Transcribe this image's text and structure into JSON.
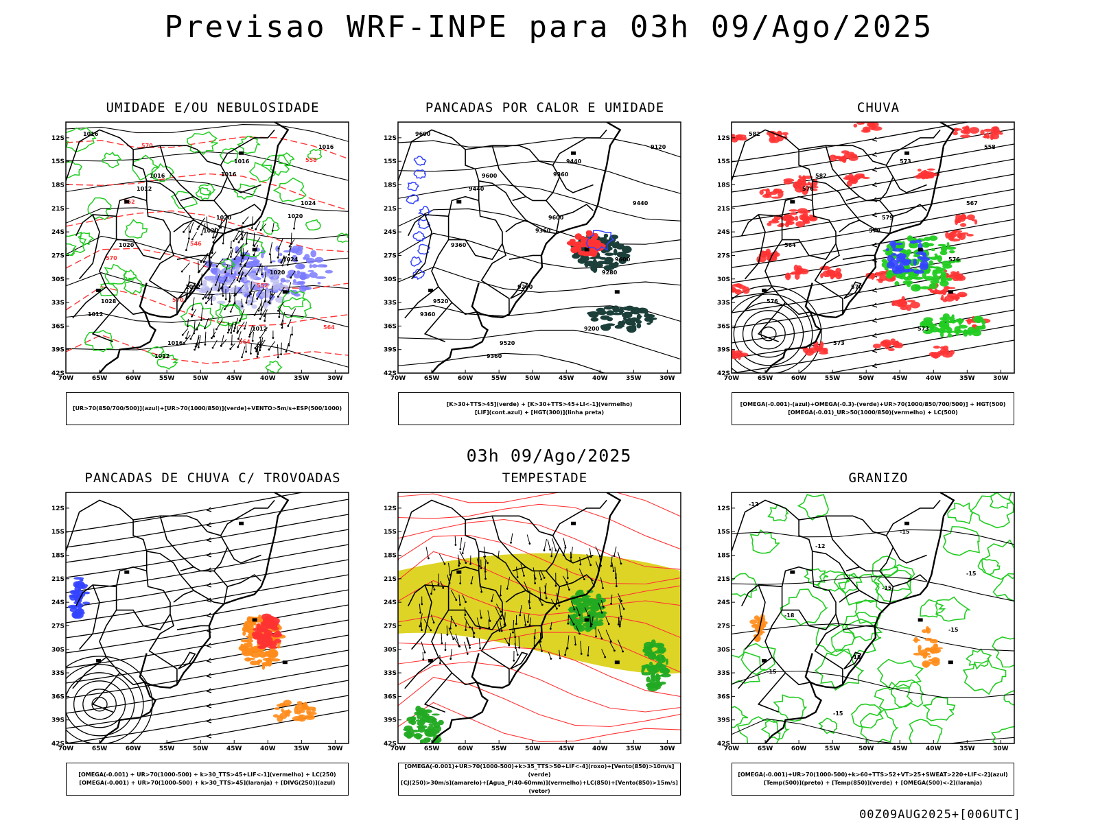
{
  "title": "Previsao WRF-INPE  para 03h 09/Ago/2025",
  "subtitle": "03h 09/Ago/2025",
  "footer": "00Z09AUG2025+[006UTC]",
  "axes": {
    "lat_labels": [
      "12S",
      "15S",
      "18S",
      "21S",
      "24S",
      "27S",
      "30S",
      "33S",
      "36S",
      "39S",
      "42S"
    ],
    "lon_labels": [
      "70W",
      "65W",
      "60W",
      "55W",
      "50W",
      "45W",
      "40W",
      "35W",
      "30W"
    ]
  },
  "panels": [
    {
      "title": "UMIDADE E/OU NEBULOSIDADE",
      "legend": [
        "[UR>70(850/700/500)](azul)+[UR>70(1000/850)](verde)+VENTO>5m/s+ESP(500/1000)"
      ],
      "labels": [
        "1016",
        "1016",
        "1020",
        "1024",
        "1028",
        "1016",
        "1016",
        "1024",
        "1020",
        "1012",
        "1012",
        "1016",
        "1012",
        "1020",
        "1020",
        "1012",
        "1012",
        "1016",
        "1020",
        "570",
        "570",
        "564",
        "558",
        "552",
        "546",
        "552",
        "564",
        "570"
      ],
      "layers": [
        "blue-humidity",
        "green-humidity",
        "red-thickness",
        "black-pressure",
        "wind-vectors"
      ]
    },
    {
      "title": "PANCADAS POR CALOR E UMIDADE",
      "legend": [
        "[K>30+TTS>45](verde) + [K>30+TTS>45+LI<-1](vermelho)",
        "[LIF](cont.azul) + [HGT(300)](linha preta)"
      ],
      "labels": [
        "9600",
        "9600",
        "9600",
        "9600",
        "9520",
        "9520",
        "9440",
        "9440",
        "9360",
        "9280",
        "9200",
        "9120",
        "9440",
        "9360",
        "9280",
        "9360",
        "9360",
        "9360"
      ],
      "layers": [
        "blue-lif",
        "black-hgt300",
        "dark-green-kindex",
        "red-li"
      ]
    },
    {
      "title": "CHUVA",
      "legend": [
        "[OMEGA(-0.001)-(azul)+OMEGA(-0.3)-(verde)+UR>70(1000/850/700/500)] + HGT(500)",
        "[OMEGA(-0.01)_UR>50(1000/850)(vermelho) + LC(500)"
      ],
      "labels": [
        "582",
        "582",
        "579",
        "576",
        "576",
        "573",
        "573",
        "567",
        "564",
        "570",
        "573",
        "558",
        "576",
        "570"
      ],
      "layers": [
        "red-omega",
        "green-omega",
        "blue-omega",
        "black-streamlines"
      ]
    },
    {
      "title": "PANCADAS DE CHUVA C/ TROVOADAS",
      "legend": [
        "[OMEGA(-0.001) + UR>70(1000-500) + k>30_TTS>45+LIF<-1](vermelho) + LC(250)",
        "[OMEGA(-0.001) + UR>70(1000-500) + k>30_TTS>45](laranja) + [DIVG(250)](azul)"
      ],
      "labels": [],
      "layers": [
        "black-streamlines",
        "orange-storms",
        "red-storms",
        "blue-divergence"
      ]
    },
    {
      "title": "TEMPESTADE",
      "legend": [
        "[OMEGA(-0.001)+UR>70(1000-500)+k>35_TTS>50+LIF<-4](roxo)+[Vento(850)>10m/s](verde)",
        "[CJ(250)>30m/s](amarelo)+[Agua_P(40-60mm)](vermelho)+LC(850)+[Vento(850)>15m/s](vetor)"
      ],
      "labels": [],
      "layers": [
        "yellow-jet",
        "red-streamlines",
        "green-wind850",
        "black-vectors"
      ]
    },
    {
      "title": "GRANIZO",
      "legend": [
        "[OMEGA(-0.001)+UR>70(1000-500)+k>60+TTS>52+VT>25+SWEAT>220+LIF<-2](azul)",
        "[Temp(500)](preto) + [Temp(850)](verde) + [OMEGA(500)<-2](laranja)"
      ],
      "labels": [
        "-12",
        "-12",
        "-15",
        "-15",
        "-15",
        "-15",
        "-15",
        "-15",
        "-18",
        "-18"
      ],
      "layers": [
        "green-temp850",
        "black-temp500",
        "orange-omega500"
      ]
    }
  ]
}
